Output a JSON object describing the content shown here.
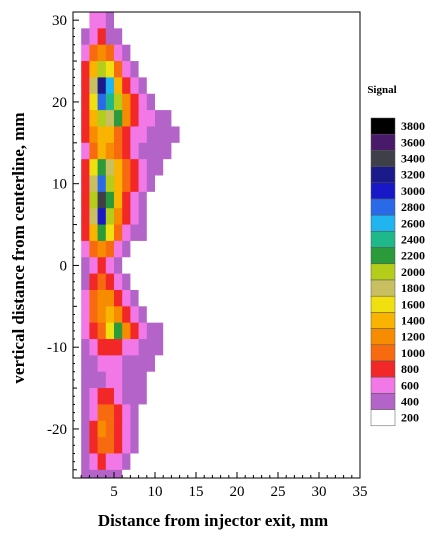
{
  "chart_data": {
    "type": "heatmap",
    "title": "",
    "xlabel": "Distance from injector exit, mm",
    "ylabel": "vertical distance from centerline, mm",
    "xlim": [
      0,
      35
    ],
    "ylim": [
      -26,
      31
    ],
    "x_ticks": [
      "5",
      "10",
      "15",
      "20",
      "25",
      "30",
      "35"
    ],
    "y_ticks": [
      "30",
      "20",
      "10",
      "0",
      "-10",
      "-20"
    ],
    "grid": false,
    "legend": {
      "title": "Signal",
      "placement": "right",
      "levels": [
        {
          "label": "3800",
          "color": "#000000"
        },
        {
          "label": "3600",
          "color": "#4a1a6a"
        },
        {
          "label": "3400",
          "color": "#3f3f4a"
        },
        {
          "label": "3200",
          "color": "#1a1a8a"
        },
        {
          "label": "3000",
          "color": "#1818c8"
        },
        {
          "label": "2800",
          "color": "#2a6ae8"
        },
        {
          "label": "2600",
          "color": "#20b4f0"
        },
        {
          "label": "2400",
          "color": "#1fb88a"
        },
        {
          "label": "2200",
          "color": "#2a9a3a"
        },
        {
          "label": "2000",
          "color": "#b4cc1a"
        },
        {
          "label": "1800",
          "color": "#c8c060"
        },
        {
          "label": "1600",
          "color": "#f0e010"
        },
        {
          "label": "1400",
          "color": "#f8b400"
        },
        {
          "label": "1200",
          "color": "#f88c00"
        },
        {
          "label": "1000",
          "color": "#f86a10"
        },
        {
          "label": "800",
          "color": "#f22828"
        },
        {
          "label": "600",
          "color": "#f278e8"
        },
        {
          "label": "400",
          "color": "#b464c8"
        },
        {
          "label": "200",
          "color": "#ffffff"
        }
      ]
    },
    "field_x": [
      0,
      1,
      2,
      3,
      4,
      5,
      6,
      7,
      8,
      9,
      10,
      11,
      12,
      13,
      14
    ],
    "field_y": [
      30,
      28,
      26,
      24,
      22,
      20,
      18,
      16,
      14,
      12,
      10,
      8,
      6,
      4,
      2,
      0,
      -2,
      -4,
      -6,
      -8,
      -10,
      -12,
      -14,
      -16,
      -18,
      -20,
      -22,
      -24,
      -26
    ],
    "field_values": [
      [
        200,
        200,
        600,
        600,
        400,
        200,
        200,
        200,
        200,
        200,
        200,
        200,
        200,
        200,
        200
      ],
      [
        200,
        400,
        600,
        800,
        400,
        400,
        200,
        200,
        200,
        200,
        200,
        200,
        200,
        200,
        200
      ],
      [
        200,
        600,
        1000,
        1200,
        1000,
        600,
        400,
        200,
        200,
        200,
        200,
        200,
        200,
        200,
        200
      ],
      [
        200,
        800,
        1400,
        2000,
        1600,
        1000,
        600,
        400,
        200,
        200,
        200,
        200,
        200,
        200,
        200
      ],
      [
        200,
        800,
        1800,
        3200,
        2600,
        1400,
        800,
        600,
        400,
        200,
        200,
        200,
        200,
        200,
        200
      ],
      [
        200,
        800,
        1600,
        2800,
        2400,
        2000,
        1200,
        800,
        600,
        400,
        200,
        200,
        200,
        200,
        200
      ],
      [
        200,
        800,
        1400,
        2000,
        1800,
        2200,
        1200,
        800,
        600,
        600,
        400,
        400,
        200,
        200,
        200
      ],
      [
        200,
        800,
        1200,
        1400,
        1400,
        1000,
        800,
        600,
        600,
        400,
        400,
        400,
        400,
        200,
        200
      ],
      [
        200,
        600,
        1000,
        1400,
        1200,
        1000,
        800,
        600,
        400,
        400,
        400,
        400,
        200,
        200,
        200
      ],
      [
        200,
        800,
        1600,
        2200,
        1800,
        1400,
        1000,
        800,
        600,
        400,
        400,
        200,
        200,
        200,
        200
      ],
      [
        200,
        800,
        1800,
        2800,
        2000,
        1400,
        1000,
        800,
        600,
        400,
        200,
        200,
        200,
        200,
        200
      ],
      [
        200,
        800,
        2000,
        3400,
        2200,
        1400,
        800,
        600,
        400,
        200,
        200,
        200,
        200,
        200,
        200
      ],
      [
        200,
        800,
        1800,
        3000,
        2000,
        1200,
        800,
        600,
        400,
        200,
        200,
        200,
        200,
        200,
        200
      ],
      [
        200,
        800,
        1400,
        2200,
        1600,
        1000,
        600,
        400,
        400,
        200,
        200,
        200,
        200,
        200,
        200
      ],
      [
        200,
        600,
        1000,
        1200,
        1000,
        600,
        400,
        200,
        200,
        200,
        200,
        200,
        200,
        200,
        200
      ],
      [
        200,
        400,
        600,
        800,
        600,
        400,
        200,
        200,
        200,
        200,
        200,
        200,
        200,
        200,
        200
      ],
      [
        200,
        400,
        800,
        1000,
        800,
        600,
        400,
        200,
        200,
        200,
        200,
        200,
        200,
        200,
        200
      ],
      [
        200,
        600,
        1000,
        1200,
        1200,
        800,
        600,
        400,
        200,
        200,
        200,
        200,
        200,
        200,
        200
      ],
      [
        200,
        600,
        1000,
        1200,
        1400,
        1200,
        800,
        600,
        400,
        200,
        200,
        200,
        200,
        200,
        200
      ],
      [
        200,
        600,
        800,
        1000,
        1600,
        2200,
        1200,
        800,
        600,
        400,
        400,
        200,
        200,
        200,
        200
      ],
      [
        200,
        400,
        600,
        800,
        800,
        800,
        600,
        600,
        400,
        400,
        400,
        200,
        200,
        200,
        200
      ],
      [
        200,
        400,
        400,
        600,
        600,
        600,
        400,
        400,
        400,
        400,
        200,
        200,
        200,
        200,
        200
      ],
      [
        200,
        400,
        400,
        400,
        600,
        600,
        400,
        400,
        400,
        200,
        200,
        200,
        200,
        200,
        200
      ],
      [
        200,
        400,
        600,
        800,
        800,
        600,
        400,
        400,
        400,
        200,
        200,
        200,
        200,
        200,
        200
      ],
      [
        200,
        400,
        600,
        1000,
        1000,
        800,
        600,
        400,
        200,
        200,
        200,
        200,
        200,
        200,
        200
      ],
      [
        200,
        400,
        800,
        1200,
        1000,
        800,
        600,
        400,
        200,
        200,
        200,
        200,
        200,
        200,
        200
      ],
      [
        200,
        400,
        800,
        1000,
        1000,
        800,
        600,
        400,
        200,
        200,
        200,
        200,
        200,
        200,
        200
      ],
      [
        200,
        400,
        600,
        800,
        600,
        600,
        400,
        200,
        200,
        200,
        200,
        200,
        200,
        200,
        200
      ],
      [
        200,
        400,
        400,
        400,
        400,
        400,
        200,
        200,
        200,
        200,
        200,
        200,
        200,
        200,
        200
      ]
    ]
  }
}
